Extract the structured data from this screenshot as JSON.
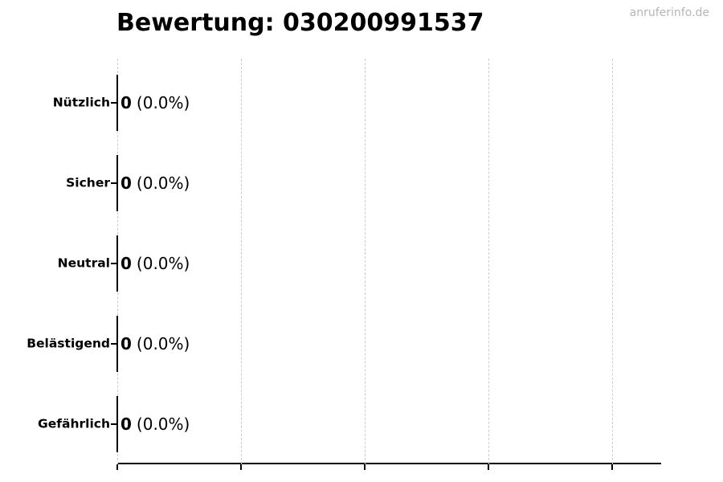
{
  "header": {
    "title": "Bewertung: 030200991537",
    "watermark": "anruferinfo.de"
  },
  "chart_data": {
    "type": "bar",
    "orientation": "horizontal",
    "title": "Bewertung: 030200991537",
    "categories": [
      "Nützlich",
      "Sicher",
      "Neutral",
      "Belästigend",
      "Gefährlich"
    ],
    "values": [
      0,
      0,
      0,
      0,
      0
    ],
    "value_labels": [
      {
        "count": "0",
        "percent": "(0.0%)"
      },
      {
        "count": "0",
        "percent": "(0.0%)"
      },
      {
        "count": "0",
        "percent": "(0.0%)"
      },
      {
        "count": "0",
        "percent": "(0.0%)"
      },
      {
        "count": "0",
        "percent": "(0.0%)"
      }
    ],
    "x_axis": {
      "label": "",
      "tick_labels": [],
      "num_gridlines": 5,
      "grid": true,
      "grid_style": "dashed"
    },
    "y_axis": {
      "label": ""
    },
    "legend": null
  },
  "colors": {
    "background": "#ffffff",
    "text": "#000000",
    "axis": "#000000",
    "gridline": "#cccccc",
    "watermark": "#b5b5b5"
  }
}
